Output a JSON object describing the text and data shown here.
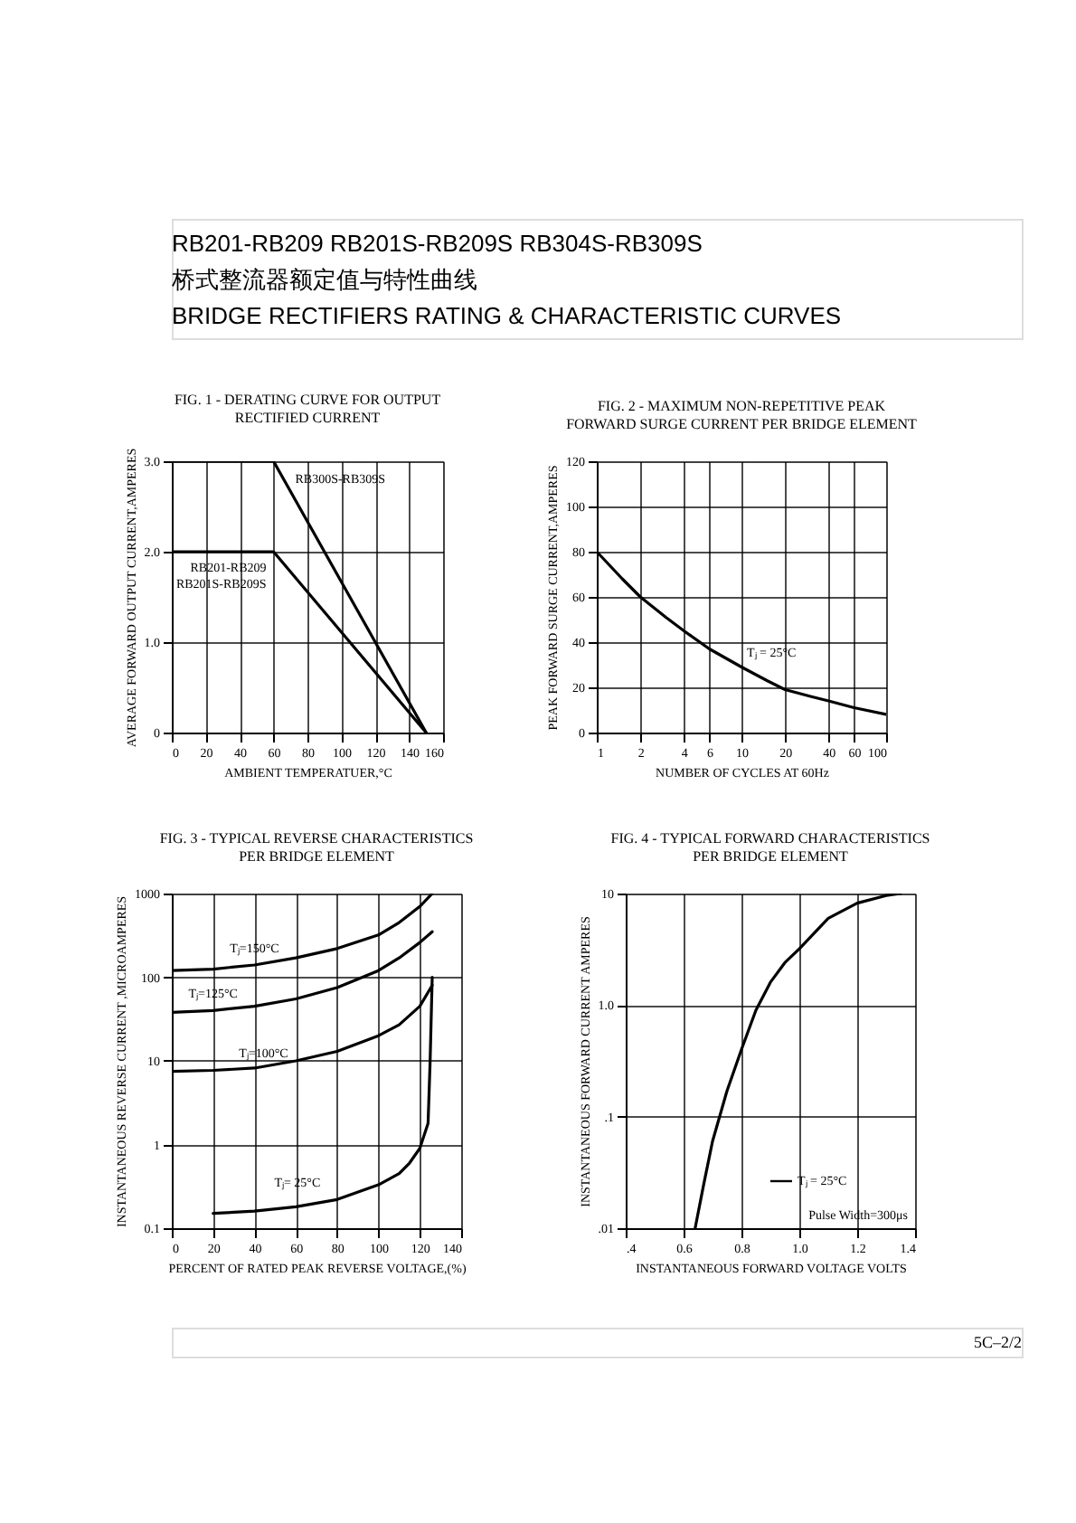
{
  "chart_data": [
    {
      "type": "other",
      "title": "RB201-RB209 RB201S-RB209S RB304S-RB309S",
      "subtitle": "桥式整流器额定值与特性曲线",
      "annotations": [
        "BRIDGE RECTIFIERS RATING & CHARACTERISTIC CURVES",
        "5C–2/2"
      ]
    },
    {
      "type": "line",
      "title": "FIG. 1 - DERATING CURVE FOR OUTPUT\nRECTIFIED CURRENT",
      "xlabel": "AMBIENT TEMPERATUER,°C",
      "ylabel": "AVERAGE FORWARD OUTPUT CURRENT,AMPERES",
      "xlim": [
        0,
        160
      ],
      "xticks": [
        0,
        20,
        40,
        60,
        80,
        100,
        120,
        140,
        160
      ],
      "ylim": [
        0,
        3
      ],
      "yticks": [
        {
          "value": 0,
          "label": "0"
        },
        {
          "value": 1,
          "label": "1.0"
        },
        {
          "value": 2,
          "label": "2.0"
        },
        {
          "value": 3,
          "label": "3.0"
        }
      ],
      "grid": true,
      "series": [
        {
          "name": "RB300S-RB309S",
          "color": "#000000",
          "x": [
            0,
            60,
            150
          ],
          "values": [
            3,
            3,
            0
          ]
        },
        {
          "name": "RB201-RB209\nRB201S-RB209S",
          "color": "#000000",
          "x": [
            0,
            60,
            150
          ],
          "values": [
            2,
            2,
            0
          ]
        }
      ]
    },
    {
      "type": "line",
      "title": "FIG. 2 - MAXIMUM NON-REPETITIVE PEAK\nFORWARD SURGE CURRENT PER BRIDGE ELEMENT",
      "xlabel": "NUMBER OF CYCLES AT 60Hz",
      "ylabel": "PEAK FORWARD SURGE CURRENT,AMPERES",
      "log": "x",
      "xlim": [
        1,
        100
      ],
      "xticks": [
        1,
        2,
        4,
        6,
        10,
        20,
        40,
        60,
        100
      ],
      "ylim": [
        0,
        120
      ],
      "yticks": [
        0,
        20,
        40,
        60,
        80,
        100,
        120
      ],
      "grid": true,
      "series": [
        {
          "name": "Tⱼ = 25°C",
          "color": "#000000",
          "x": [
            1,
            1.5,
            2,
            3,
            4,
            6,
            10,
            15,
            20,
            30,
            40,
            60,
            100
          ],
          "values": [
            80,
            68,
            60,
            51,
            45,
            37,
            29,
            23,
            19,
            16,
            14,
            11,
            8
          ]
        }
      ]
    },
    {
      "type": "line",
      "title": "FIG. 3 - TYPICAL REVERSE CHARACTERISTICS\nPER BRIDGE ELEMENT",
      "xlabel": "PERCENT OF RATED PEAK REVERSE VOLTAGE,(%)",
      "ylabel": "INSTANTANEOUS REVERSE CURRENT ,MICROAMPERES",
      "log": "y",
      "xlim": [
        0,
        140
      ],
      "xticks": [
        0,
        20,
        40,
        60,
        80,
        100,
        120,
        140
      ],
      "ylim": [
        0.1,
        1000
      ],
      "yticks": [
        0.1,
        1,
        10,
        100,
        1000
      ],
      "grid": true,
      "series": [
        {
          "name": "Tⱼ=150°C",
          "color": "#000000",
          "x": [
            0,
            20,
            40,
            60,
            80,
            100,
            110,
            120,
            126
          ],
          "values": [
            120,
            125,
            140,
            170,
            220,
            320,
            450,
            700,
            1000
          ]
        },
        {
          "name": "Tⱼ=125°C",
          "color": "#000000",
          "x": [
            0,
            20,
            40,
            60,
            80,
            100,
            110,
            120,
            126
          ],
          "values": [
            38,
            40,
            45,
            55,
            75,
            120,
            170,
            260,
            350
          ]
        },
        {
          "name": "Tⱼ=100°C",
          "color": "#000000",
          "x": [
            0,
            20,
            40,
            60,
            80,
            100,
            110,
            120,
            126
          ],
          "values": [
            7.5,
            7.7,
            8.2,
            10,
            13,
            20,
            27,
            45,
            80
          ]
        },
        {
          "name": "Tⱼ= 25°C",
          "color": "#000000",
          "x": [
            20,
            40,
            60,
            80,
            100,
            110,
            115,
            120,
            124,
            125,
            126
          ],
          "values": [
            0.15,
            0.16,
            0.18,
            0.22,
            0.33,
            0.45,
            0.6,
            0.9,
            1.8,
            10,
            100
          ]
        }
      ]
    },
    {
      "type": "line",
      "title": "FIG. 4 - TYPICAL FORWARD CHARACTERISTICS\nPER BRIDGE ELEMENT",
      "xlabel": "INSTANTANEOUS FORWARD VOLTAGE VOLTS",
      "ylabel": "INSTANTANEOUS FORWARD CURRENT AMPERES",
      "log": "y",
      "xlim": [
        0.4,
        1.4
      ],
      "xticks": [
        {
          "value": 0.4,
          "label": ".4"
        },
        0.6,
        0.8,
        {
          "value": 1.0,
          "label": "1.0"
        },
        1.2,
        1.4
      ],
      "ylim": [
        0.01,
        10
      ],
      "yticks": [
        {
          "value": 0.01,
          "label": ".01"
        },
        {
          "value": 0.1,
          "label": ".1"
        },
        {
          "value": 1,
          "label": "1.0"
        },
        10
      ],
      "grid": true,
      "legend": "bottom right",
      "annotations": [
        "Pulse Width=300μs"
      ],
      "series": [
        {
          "name": "Tⱼ = 25°C",
          "color": "#000000",
          "x": [
            0.64,
            0.67,
            0.7,
            0.75,
            0.8,
            0.85,
            0.9,
            0.95,
            1.0,
            1.1,
            1.2,
            1.3,
            1.35
          ],
          "values": [
            0.01,
            0.025,
            0.06,
            0.17,
            0.4,
            0.9,
            1.6,
            2.4,
            3.2,
            6,
            8.2,
            9.6,
            10
          ]
        }
      ]
    }
  ]
}
